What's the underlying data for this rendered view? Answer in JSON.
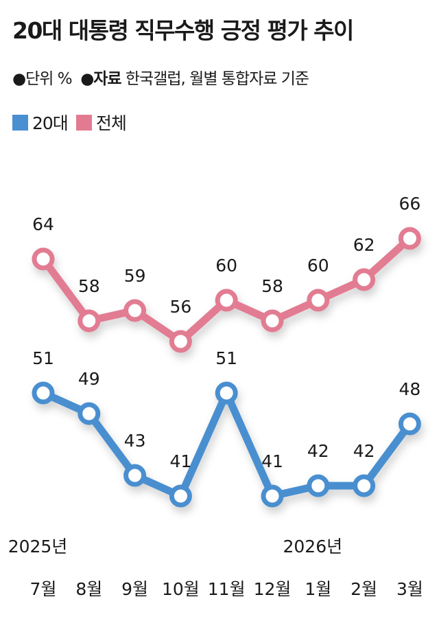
{
  "title": "20대 대통령 직무수행 긍정 평가 추이",
  "meta": {
    "unit_label": "●단위",
    "unit": "%",
    "source_label": "●자료",
    "source": "한국갤럽, 월별 통합자료 기준"
  },
  "colors": {
    "20s": "#4a8fd0",
    "all": "#e27b92"
  },
  "chart_data": {
    "type": "line",
    "title": "20대 대통령 직무수행 긍정 평가 추이",
    "categories": [
      "7월",
      "8월",
      "9월",
      "10월",
      "11월",
      "12월",
      "1월",
      "2월",
      "3월"
    ],
    "year_labels": [
      {
        "label": "2025년",
        "category_index": 0
      },
      {
        "label": "2026년",
        "category_index": 6
      }
    ],
    "series": [
      {
        "name": "20대",
        "color": "#4a8fd0",
        "values": [
          51,
          49,
          43,
          41,
          51,
          41,
          42,
          42,
          48
        ]
      },
      {
        "name": "전체",
        "color": "#e27b92",
        "values": [
          64,
          58,
          59,
          56,
          60,
          58,
          60,
          62,
          66
        ]
      }
    ],
    "legend": "top-left",
    "grid": false,
    "data_labels": true
  }
}
